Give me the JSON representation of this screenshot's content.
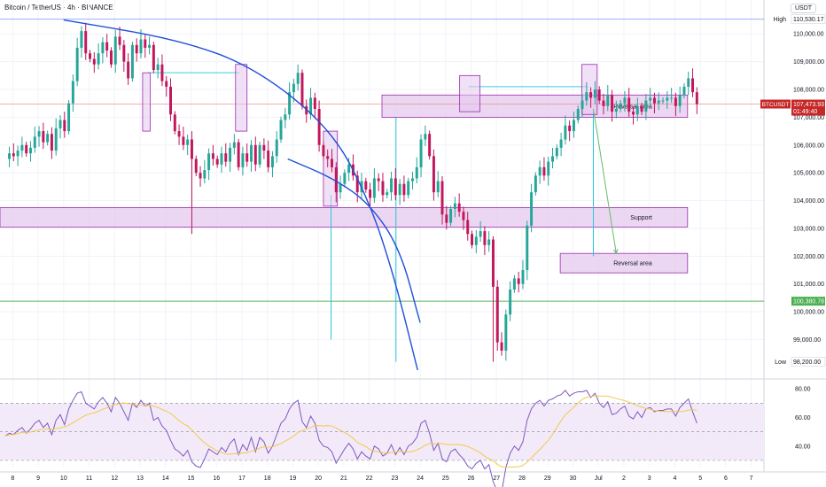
{
  "header": {
    "symbol_title": "Bitcoin / TetherUS · 4h · BINANCE",
    "currency": "USDT"
  },
  "colors": {
    "up": "#26a69a",
    "down": "#c2185b",
    "zone_fill": "#e6c9ee",
    "zone_stroke": "#9c27b0",
    "curve": "#1e4fd8",
    "cyan": "#26c6da",
    "green_line": "#4caf50",
    "price_line": "#e57373",
    "rsi_line": "#7e57c2",
    "rsi_ma": "#f2c94c",
    "rsi_band": "#f3eaf9"
  },
  "chart_data": {
    "type": "candlestick",
    "symbol": "BTCUSDT",
    "interval": "4h",
    "y_axis": {
      "range": [
        97900,
        110900
      ],
      "ticks": [
        99000,
        100000,
        101000,
        102000,
        103000,
        104000,
        105000,
        106000,
        107000,
        108000,
        109000,
        110000
      ],
      "tick_labels": [
        "99,000.00",
        "100,000.00",
        "101,000.00",
        "102,000.00",
        "103,000.00",
        "104,000.00",
        "105,000.00",
        "106,000.00",
        "107,000.00",
        "108,000.00",
        "109,000.00",
        "110,000.00"
      ]
    },
    "x_axis": {
      "range": [
        7.5,
        37.5
      ],
      "tick_days": [
        8,
        9,
        10,
        11,
        12,
        13,
        14,
        15,
        16,
        17,
        18,
        19,
        20,
        21,
        22,
        23,
        24,
        25,
        26,
        27,
        28,
        29,
        30,
        31,
        32,
        33,
        34,
        35,
        36,
        37
      ],
      "tick_labels": [
        "8",
        "9",
        "10",
        "11",
        "12",
        "13",
        "14",
        "15",
        "16",
        "17",
        "18",
        "19",
        "20",
        "21",
        "22",
        "23",
        "24",
        "25",
        "26",
        "27",
        "28",
        "29",
        "30",
        "Jul",
        "2",
        "3",
        "4",
        "5",
        "6",
        "7"
      ]
    },
    "axis_markers": [
      {
        "label": "High",
        "value": 110530.17,
        "text": "110,530.17"
      },
      {
        "label": "",
        "value": 100380.78,
        "text": "100,380.78"
      },
      {
        "label": "Low",
        "value": 98200.0,
        "text": "98,200.00"
      }
    ],
    "current_price": {
      "symbol": "BTCUSDT",
      "value": 107473.93,
      "text": "107,473.93",
      "countdown": "01:49:40"
    },
    "closes": [
      105500,
      105700,
      105600,
      105800,
      106000,
      105700,
      105900,
      106300,
      106500,
      106100,
      106400,
      105800,
      106600,
      106900,
      106500,
      107500,
      108300,
      109500,
      110100,
      109300,
      109100,
      108900,
      109300,
      109700,
      109400,
      108900,
      109900,
      109600,
      109000,
      108400,
      109600,
      109300,
      109800,
      109500,
      109600,
      108700,
      108900,
      108300,
      108100,
      107100,
      106500,
      106300,
      106000,
      106200,
      105500,
      105000,
      104800,
      105100,
      105700,
      105500,
      105300,
      105700,
      105400,
      105900,
      106100,
      105200,
      105700,
      105400,
      106000,
      105300,
      106000,
      105800,
      105200,
      105600,
      106200,
      106900,
      107100,
      107900,
      108200,
      108600,
      107400,
      107100,
      107700,
      107300,
      106000,
      105600,
      105500,
      105200,
      104300,
      104600,
      105000,
      105300,
      104900,
      104300,
      104700,
      104400,
      104100,
      104800,
      104700,
      104200,
      104300,
      104800,
      104200,
      104600,
      104200,
      104700,
      104800,
      105200,
      106200,
      106400,
      105600,
      104300,
      104700,
      103500,
      103200,
      103700,
      103900,
      103600,
      103300,
      102800,
      102400,
      102700,
      102900,
      102400,
      102600,
      100900,
      98900,
      98600,
      99900,
      100800,
      101200,
      101000,
      101500,
      103100,
      104300,
      104900,
      105200,
      104900,
      105400,
      105600,
      105900,
      106200,
      106700,
      106500,
      106900,
      107300,
      107600,
      107900,
      107700,
      108000,
      107600,
      107400,
      107800,
      107200,
      107300,
      107500,
      107700,
      107200,
      107100,
      107400,
      107200,
      107600,
      107700,
      107500,
      107600,
      107600,
      107700,
      107700,
      107400,
      107800,
      108100,
      108400,
      107900,
      107474
    ],
    "annotations": [
      {
        "type": "zone",
        "label": "Reversal area",
        "from_x": 22.5,
        "to_x": 34.5,
        "y_low": 107000,
        "y_high": 107800
      },
      {
        "type": "zone",
        "label": "Support",
        "from_x": 7.5,
        "to_x": 34.5,
        "y_low": 103050,
        "y_high": 103750
      },
      {
        "type": "zone",
        "label": "Reversal area",
        "from_x": 29.5,
        "to_x": 34.5,
        "y_low": 101400,
        "y_high": 102100
      },
      {
        "type": "curve",
        "color": "blue",
        "points": [
          [
            10.0,
            110500
          ],
          [
            14.5,
            109800
          ],
          [
            17.5,
            108800
          ],
          [
            20.5,
            106600
          ],
          [
            22.0,
            104000
          ],
          [
            23.0,
            101200
          ],
          [
            23.9,
            97900
          ]
        ]
      },
      {
        "type": "curve",
        "color": "blue",
        "points": [
          [
            18.8,
            105500
          ],
          [
            20.6,
            104800
          ],
          [
            22.0,
            103900
          ],
          [
            23.2,
            102300
          ],
          [
            24.0,
            99600
          ]
        ]
      },
      {
        "type": "projection",
        "color": "green",
        "from": [
          30.8,
          107300
        ],
        "to": [
          31.7,
          102100
        ]
      }
    ],
    "highlight_boxes": [
      {
        "from_x": 13.1,
        "to_x": 13.4,
        "y_low": 106500,
        "y_high": 108600
      },
      {
        "from_x": 16.75,
        "to_x": 17.2,
        "y_low": 106500,
        "y_high": 108900
      },
      {
        "from_x": 20.2,
        "to_x": 20.75,
        "y_low": 103800,
        "y_high": 106500
      },
      {
        "from_x": 25.55,
        "to_x": 26.35,
        "y_low": 107200,
        "y_high": 108500
      },
      {
        "from_x": 30.35,
        "to_x": 30.95,
        "y_low": 107100,
        "y_high": 108900
      }
    ],
    "reference_lines": [
      {
        "type": "horizontal",
        "color": "green",
        "value": 100380.78
      },
      {
        "type": "horizontal",
        "color": "red",
        "value": 107473.93
      },
      {
        "type": "horizontal",
        "color": "blue",
        "value": 110530.17
      },
      {
        "type": "horizontal",
        "color": "cyan",
        "value": 108600,
        "from_x": 13.3,
        "to_x": 16.9
      },
      {
        "type": "horizontal",
        "color": "cyan",
        "value": 108100,
        "from_x": 25.9,
        "to_x": 30.6
      }
    ],
    "reference_segments": [
      {
        "color": "cyan",
        "x": 20.5,
        "from_y": 99000,
        "to_y": 104200
      },
      {
        "color": "cyan",
        "x": 23.05,
        "from_y": 98200,
        "to_y": 107000
      },
      {
        "color": "cyan",
        "x": 30.8,
        "from_y": 102000,
        "to_y": 107200
      }
    ],
    "rsi": {
      "ticks": [
        40,
        60,
        80
      ],
      "tick_labels": [
        "40.00",
        "60.00",
        "80.00"
      ],
      "range": [
        25,
        82
      ],
      "band": [
        30,
        70
      ],
      "midline": 50,
      "values": [
        47,
        49,
        48,
        51,
        53,
        49,
        52,
        56,
        58,
        53,
        56,
        48,
        58,
        62,
        55,
        66,
        72,
        77,
        78,
        70,
        68,
        66,
        71,
        74,
        70,
        64,
        74,
        70,
        64,
        58,
        70,
        67,
        72,
        68,
        70,
        58,
        60,
        54,
        51,
        44,
        38,
        36,
        33,
        37,
        29,
        26,
        25,
        31,
        38,
        36,
        34,
        39,
        36,
        42,
        45,
        34,
        41,
        37,
        46,
        36,
        46,
        43,
        35,
        40,
        48,
        56,
        59,
        66,
        70,
        72,
        57,
        53,
        61,
        56,
        44,
        40,
        39,
        36,
        28,
        33,
        38,
        42,
        38,
        31,
        36,
        33,
        31,
        40,
        38,
        33,
        35,
        41,
        34,
        39,
        34,
        40,
        42,
        46,
        56,
        58,
        49,
        37,
        42,
        31,
        29,
        36,
        38,
        34,
        31,
        26,
        24,
        28,
        30,
        24,
        27,
        15,
        8,
        8,
        25,
        35,
        40,
        37,
        43,
        58,
        66,
        70,
        72,
        68,
        72,
        73,
        75,
        76,
        79,
        75,
        77,
        78,
        78,
        79,
        74,
        77,
        70,
        67,
        71,
        62,
        63,
        66,
        68,
        61,
        59,
        64,
        60,
        66,
        67,
        64,
        65,
        65,
        66,
        66,
        61,
        67,
        70,
        73,
        64,
        56
      ]
    }
  }
}
